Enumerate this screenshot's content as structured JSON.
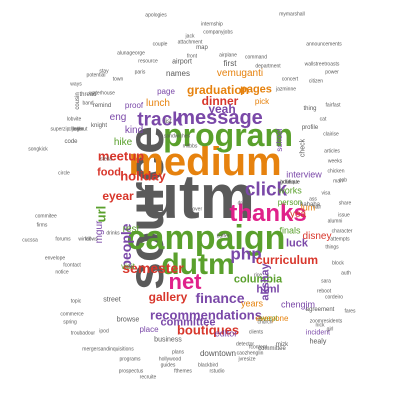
{
  "palette": {
    "grey": "#5a5a5a",
    "orange": "#e6820e",
    "purple": "#7a48a8",
    "green": "#5aa02c",
    "pink": "#e0218a",
    "blue": "#3b6fc0",
    "red": "#d8362b",
    "brown": "#a0522d",
    "teal": "#2a9d8f",
    "olive": "#8c8c2a"
  },
  "words": [
    {
      "text": "utm",
      "color": "grey",
      "weight": 62,
      "rotated": false
    },
    {
      "text": "source",
      "color": "grey",
      "weight": 50,
      "rotated": true
    },
    {
      "text": "medium",
      "color": "orange",
      "weight": 40,
      "rotated": false
    },
    {
      "text": "campaign",
      "color": "green",
      "weight": 34,
      "rotated": false
    },
    {
      "text": "program",
      "color": "green",
      "weight": 32,
      "rotated": false
    },
    {
      "text": "dutm",
      "color": "green",
      "weight": 30,
      "rotated": false
    },
    {
      "text": "thanks",
      "color": "pink",
      "weight": 24,
      "rotated": false
    },
    {
      "text": "net",
      "color": "pink",
      "weight": 22,
      "rotated": false
    },
    {
      "text": "message",
      "color": "purple",
      "weight": 20,
      "rotated": false
    },
    {
      "text": "track",
      "color": "purple",
      "weight": 19,
      "rotated": false
    },
    {
      "text": "click",
      "color": "purple",
      "weight": 19,
      "rotated": false
    },
    {
      "text": "php",
      "color": "purple",
      "weight": 17,
      "rotated": false
    },
    {
      "text": "finance",
      "color": "purple",
      "weight": 14,
      "rotated": false
    },
    {
      "text": "recommendations",
      "color": "purple",
      "weight": 13,
      "rotated": false
    },
    {
      "text": "people",
      "color": "purple",
      "weight": 14,
      "rotated": true
    },
    {
      "text": "semester",
      "color": "red",
      "weight": 14,
      "rotated": false
    },
    {
      "text": "boutiques",
      "color": "red",
      "weight": 13,
      "rotated": false
    },
    {
      "text": "holiday",
      "color": "red",
      "weight": 13,
      "rotated": false
    },
    {
      "text": "meetup",
      "color": "red",
      "weight": 13,
      "rotated": false
    },
    {
      "text": "eyear",
      "color": "red",
      "weight": 12,
      "rotated": false
    },
    {
      "text": "dinner",
      "color": "red",
      "weight": 12,
      "rotated": false
    },
    {
      "text": "curriculum",
      "color": "red",
      "weight": 12,
      "rotated": false
    },
    {
      "text": "gallery",
      "color": "red",
      "weight": 12,
      "rotated": false
    },
    {
      "text": "graduation",
      "color": "orange",
      "weight": 12,
      "rotated": false
    },
    {
      "text": "yeah",
      "color": "purple",
      "weight": 12,
      "rotated": false
    },
    {
      "text": "columbia",
      "color": "green",
      "weight": 11,
      "rotated": false
    },
    {
      "text": "committee",
      "color": "purple",
      "weight": 11,
      "rotated": false
    },
    {
      "text": "akshay",
      "color": "purple",
      "weight": 11,
      "rotated": true
    },
    {
      "text": "food",
      "color": "red",
      "weight": 11,
      "rotated": false
    },
    {
      "text": "url",
      "color": "green",
      "weight": 13,
      "rotated": true
    },
    {
      "text": "luck",
      "color": "purple",
      "weight": 11,
      "rotated": false
    },
    {
      "text": "disney",
      "color": "red",
      "weight": 10,
      "rotated": false
    },
    {
      "text": "html",
      "color": "purple",
      "weight": 11,
      "rotated": false
    },
    {
      "text": "lunch",
      "color": "orange",
      "weight": 10,
      "rotated": false
    },
    {
      "text": "vemuganti",
      "color": "orange",
      "weight": 10,
      "rotated": false
    },
    {
      "text": "pages",
      "color": "orange",
      "weight": 11,
      "rotated": false
    },
    {
      "text": "rest",
      "color": "green",
      "weight": 10,
      "rotated": false
    },
    {
      "text": "yea",
      "color": "red",
      "weight": 10,
      "rotated": false
    },
    {
      "text": "kind",
      "color": "purple",
      "weight": 10,
      "rotated": false
    },
    {
      "text": "mgur",
      "color": "purple",
      "weight": 10,
      "rotated": true
    },
    {
      "text": "hike",
      "color": "green",
      "weight": 10,
      "rotated": false
    },
    {
      "text": "eng",
      "color": "purple",
      "weight": 10,
      "rotated": false
    },
    {
      "text": "editor",
      "color": "purple",
      "weight": 9,
      "rotated": false
    },
    {
      "text": "years",
      "color": "orange",
      "weight": 9,
      "rotated": false
    },
    {
      "text": "interview",
      "color": "purple",
      "weight": 9,
      "rotated": false
    },
    {
      "text": "finals",
      "color": "green",
      "weight": 9,
      "rotated": false
    },
    {
      "text": "chengjm",
      "color": "purple",
      "weight": 9,
      "rotated": false
    },
    {
      "text": "works",
      "color": "green",
      "weight": 9,
      "rotated": false
    },
    {
      "text": "person",
      "color": "green",
      "weight": 8,
      "rotated": false
    },
    {
      "text": "event",
      "color": "green",
      "weight": 8,
      "rotated": false
    },
    {
      "text": "everyone",
      "color": "orange",
      "weight": 8,
      "rotated": false
    },
    {
      "text": "place",
      "color": "purple",
      "weight": 8,
      "rotated": false
    },
    {
      "text": "lum",
      "color": "orange",
      "weight": 9,
      "rotated": false
    },
    {
      "text": "downtown",
      "color": "grey",
      "weight": 8,
      "rotated": false
    },
    {
      "text": "incident",
      "color": "purple",
      "weight": 7,
      "rotated": false
    },
    {
      "text": "healy",
      "color": "grey",
      "weight": 7,
      "rotated": false
    },
    {
      "text": "pick",
      "color": "orange",
      "weight": 8,
      "rotated": false
    },
    {
      "text": "first",
      "color": "grey",
      "weight": 8,
      "rotated": false
    },
    {
      "text": "names",
      "color": "grey",
      "weight": 8,
      "rotated": false
    },
    {
      "text": "page",
      "color": "purple",
      "weight": 8,
      "rotated": false
    },
    {
      "text": "airport",
      "color": "grey",
      "weight": 7,
      "rotated": false
    },
    {
      "text": "proof",
      "color": "purple",
      "weight": 8,
      "rotated": false
    },
    {
      "text": "visit",
      "color": "green",
      "weight": 8,
      "rotated": false
    },
    {
      "text": "browse",
      "color": "grey",
      "weight": 7,
      "rotated": false
    },
    {
      "text": "street",
      "color": "grey",
      "weight": 7,
      "rotated": false
    },
    {
      "text": "business",
      "color": "grey",
      "weight": 7,
      "rotated": false
    },
    {
      "text": "agreement",
      "color": "grey",
      "weight": 6,
      "rotated": false
    },
    {
      "text": "school",
      "color": "purple",
      "weight": 8,
      "rotated": true
    },
    {
      "text": "check",
      "color": "grey",
      "weight": 7,
      "rotated": true
    },
    {
      "text": "committee",
      "color": "grey",
      "weight": 6,
      "rotated": false
    },
    {
      "text": "profile",
      "color": "grey",
      "weight": 6,
      "rotated": false
    },
    {
      "text": "thing",
      "color": "grey",
      "weight": 6,
      "rotated": false
    },
    {
      "text": "list",
      "color": "grey",
      "weight": 6,
      "rotated": false
    },
    {
      "text": "hahaha",
      "color": "grey",
      "weight": 6,
      "rotated": false
    },
    {
      "text": "mizk",
      "color": "grey",
      "weight": 6,
      "rotated": false
    },
    {
      "text": "code",
      "color": "grey",
      "weight": 6,
      "rotated": false
    },
    {
      "text": "stella",
      "color": "grey",
      "weight": 5,
      "rotated": false
    },
    {
      "text": "knight",
      "color": "grey",
      "weight": 6,
      "rotated": false
    },
    {
      "text": "cousin",
      "color": "grey",
      "weight": 6,
      "rotated": true
    },
    {
      "text": "waterhouse",
      "color": "grey",
      "weight": 5,
      "rotated": false
    },
    {
      "text": "remind",
      "color": "grey",
      "weight": 6,
      "rotated": false
    },
    {
      "text": "thread",
      "color": "grey",
      "weight": 6,
      "rotated": false
    },
    {
      "text": "band",
      "color": "grey",
      "weight": 5,
      "rotated": false
    },
    {
      "text": "stay",
      "color": "grey",
      "weight": 5,
      "rotated": false
    },
    {
      "text": "paris",
      "color": "grey",
      "weight": 5,
      "rotated": false
    },
    {
      "text": "airplane",
      "color": "grey",
      "weight": 5,
      "rotated": false
    },
    {
      "text": "map",
      "color": "grey",
      "weight": 6,
      "rotated": false
    },
    {
      "text": "command",
      "color": "grey",
      "weight": 5,
      "rotated": false
    },
    {
      "text": "wallstreetroasts",
      "color": "grey",
      "weight": 5,
      "rotated": false
    },
    {
      "text": "department",
      "color": "grey",
      "weight": 5,
      "rotated": false
    },
    {
      "text": "resource",
      "color": "grey",
      "weight": 5,
      "rotated": false
    },
    {
      "text": "front",
      "color": "grey",
      "weight": 5,
      "rotated": false
    },
    {
      "text": "couple",
      "color": "grey",
      "weight": 5,
      "rotated": false
    },
    {
      "text": "jack",
      "color": "grey",
      "weight": 5,
      "rotated": false
    },
    {
      "text": "internship",
      "color": "grey",
      "weight": 5,
      "rotated": false
    },
    {
      "text": "companyjobs",
      "color": "grey",
      "weight": 5,
      "rotated": false
    },
    {
      "text": "attachment",
      "color": "grey",
      "weight": 5,
      "rotated": false
    },
    {
      "text": "apologies",
      "color": "grey",
      "weight": 5,
      "rotated": false
    },
    {
      "text": "mymarshall",
      "color": "grey",
      "weight": 5,
      "rotated": false
    },
    {
      "text": "alunageorge",
      "color": "grey",
      "weight": 5,
      "rotated": false
    },
    {
      "text": "potential",
      "color": "grey",
      "weight": 5,
      "rotated": false
    },
    {
      "text": "jazminne",
      "color": "grey",
      "weight": 5,
      "rotated": false
    },
    {
      "text": "citizen",
      "color": "grey",
      "weight": 5,
      "rotated": false
    },
    {
      "text": "concert",
      "color": "grey",
      "weight": 5,
      "rotated": false
    },
    {
      "text": "power",
      "color": "grey",
      "weight": 5,
      "rotated": false
    },
    {
      "text": "announcements",
      "color": "grey",
      "weight": 5,
      "rotated": false
    },
    {
      "text": "fairfast",
      "color": "grey",
      "weight": 5,
      "rotated": false
    },
    {
      "text": "clairise",
      "color": "grey",
      "weight": 5,
      "rotated": false
    },
    {
      "text": "articles",
      "color": "grey",
      "weight": 5,
      "rotated": false
    },
    {
      "text": "weeks",
      "color": "grey",
      "weight": 5,
      "rotated": false
    },
    {
      "text": "chicken",
      "color": "grey",
      "weight": 5,
      "rotated": false
    },
    {
      "text": "mah",
      "color": "grey",
      "weight": 5,
      "rotated": false
    },
    {
      "text": "visa",
      "color": "grey",
      "weight": 5,
      "rotated": false
    },
    {
      "text": "share",
      "color": "grey",
      "weight": 5,
      "rotated": false
    },
    {
      "text": "issue",
      "color": "grey",
      "weight": 5,
      "rotated": false
    },
    {
      "text": "alumni",
      "color": "grey",
      "weight": 5,
      "rotated": false
    },
    {
      "text": "character",
      "color": "grey",
      "weight": 5,
      "rotated": false
    },
    {
      "text": "attempts",
      "color": "grey",
      "weight": 5,
      "rotated": false
    },
    {
      "text": "things",
      "color": "grey",
      "weight": 5,
      "rotated": false
    },
    {
      "text": "block",
      "color": "grey",
      "weight": 5,
      "rotated": false
    },
    {
      "text": "auth",
      "color": "grey",
      "weight": 5,
      "rotated": false
    },
    {
      "text": "sara",
      "color": "grey",
      "weight": 5,
      "rotated": false
    },
    {
      "text": "reboot",
      "color": "grey",
      "weight": 5,
      "rotated": false
    },
    {
      "text": "cordeiro",
      "color": "grey",
      "weight": 5,
      "rotated": false
    },
    {
      "text": "zoomresidents",
      "color": "grey",
      "weight": 5,
      "rotated": false
    },
    {
      "text": "nick",
      "color": "grey",
      "weight": 5,
      "rotated": false
    },
    {
      "text": "girl",
      "color": "grey",
      "weight": 5,
      "rotated": false
    },
    {
      "text": "fares",
      "color": "grey",
      "weight": 5,
      "rotated": false
    },
    {
      "text": "caozhenglin",
      "color": "grey",
      "weight": 5,
      "rotated": false
    },
    {
      "text": "fcontent",
      "color": "grey",
      "weight": 5,
      "rotated": false
    },
    {
      "text": "jvresize",
      "color": "grey",
      "weight": 5,
      "rotated": false
    },
    {
      "text": "rstudio",
      "color": "grey",
      "weight": 5,
      "rotated": false
    },
    {
      "text": "fthemes",
      "color": "grey",
      "weight": 5,
      "rotated": false
    },
    {
      "text": "recruite",
      "color": "grey",
      "weight": 5,
      "rotated": false
    },
    {
      "text": "blackbird",
      "color": "grey",
      "weight": 5,
      "rotated": false
    },
    {
      "text": "guides",
      "color": "grey",
      "weight": 5,
      "rotated": false
    },
    {
      "text": "hollywood",
      "color": "grey",
      "weight": 5,
      "rotated": false
    },
    {
      "text": "prospectus",
      "color": "grey",
      "weight": 5,
      "rotated": false
    },
    {
      "text": "programs",
      "color": "grey",
      "weight": 5,
      "rotated": false
    },
    {
      "text": "mergersandinquisitions",
      "color": "grey",
      "weight": 5,
      "rotated": false
    },
    {
      "text": "ipod",
      "color": "grey",
      "weight": 5,
      "rotated": false
    },
    {
      "text": "troubadour",
      "color": "grey",
      "weight": 5,
      "rotated": false
    },
    {
      "text": "spring",
      "color": "grey",
      "weight": 5,
      "rotated": false
    },
    {
      "text": "commerce",
      "color": "grey",
      "weight": 5,
      "rotated": false
    },
    {
      "text": "topic",
      "color": "grey",
      "weight": 5,
      "rotated": false
    },
    {
      "text": "fcontact",
      "color": "grey",
      "weight": 5,
      "rotated": false
    },
    {
      "text": "envelope",
      "color": "grey",
      "weight": 5,
      "rotated": false
    },
    {
      "text": "forums",
      "color": "grey",
      "weight": 5,
      "rotated": false
    },
    {
      "text": "cucssa",
      "color": "grey",
      "weight": 5,
      "rotated": false
    },
    {
      "text": "firms",
      "color": "grey",
      "weight": 5,
      "rotated": false
    },
    {
      "text": "commitee",
      "color": "grey",
      "weight": 5,
      "rotated": false
    },
    {
      "text": "circle",
      "color": "grey",
      "weight": 5,
      "rotated": false
    },
    {
      "text": "songkick",
      "color": "grey",
      "weight": 5,
      "rotated": false
    },
    {
      "text": "superzip",
      "color": "grey",
      "weight": 5,
      "rotated": false
    },
    {
      "text": "ways",
      "color": "grey",
      "weight": 5,
      "rotated": false
    },
    {
      "text": "town",
      "color": "grey",
      "weight": 5,
      "rotated": false
    },
    {
      "text": "detector",
      "color": "grey",
      "weight": 5,
      "rotated": false
    },
    {
      "text": "plans",
      "color": "grey",
      "weight": 5,
      "rotated": false
    },
    {
      "text": "clients",
      "color": "grey",
      "weight": 5,
      "rotated": false
    },
    {
      "text": "church",
      "color": "grey",
      "weight": 5,
      "rotated": false
    },
    {
      "text": "rice",
      "color": "grey",
      "weight": 5,
      "rotated": false
    },
    {
      "text": "buffer",
      "color": "grey",
      "weight": 5,
      "rotated": false
    },
    {
      "text": "drink",
      "color": "grey",
      "weight": 5,
      "rotated": false
    },
    {
      "text": "sandwiches",
      "color": "grey",
      "weight": 5,
      "rotated": false
    },
    {
      "text": "mitbbs",
      "color": "grey",
      "weight": 5,
      "rotated": false
    },
    {
      "text": "cat",
      "color": "grey",
      "weight": 5,
      "rotated": false
    },
    {
      "text": "hair",
      "color": "grey",
      "weight": 5,
      "rotated": false
    },
    {
      "text": "ass",
      "color": "grey",
      "weight": 5,
      "rotated": false
    },
    {
      "text": "cab",
      "color": "grey",
      "weight": 5,
      "rotated": false
    },
    {
      "text": "notice",
      "color": "grey",
      "weight": 5,
      "rotated": false
    },
    {
      "text": "cover",
      "color": "grey",
      "weight": 5,
      "rotated": false
    },
    {
      "text": "drinks",
      "color": "grey",
      "weight": 5,
      "rotated": false
    },
    {
      "text": "lobvite",
      "color": "grey",
      "weight": 5,
      "rotated": false
    },
    {
      "text": "graduate",
      "color": "grey",
      "weight": 5,
      "rotated": false
    },
    {
      "text": "chestnut",
      "color": "grey",
      "weight": 5,
      "rotated": false
    },
    {
      "text": "windows",
      "color": "grey",
      "weight": 5,
      "rotated": false
    },
    {
      "text": "boutique",
      "color": "grey",
      "weight": 5,
      "rotated": false
    },
    {
      "text": "login",
      "color": "grey",
      "weight": 5,
      "rotated": false
    },
    {
      "text": "fall",
      "color": "grey",
      "weight": 5,
      "rotated": false
    },
    {
      "text": "fliers",
      "color": "grey",
      "weight": 5,
      "rotated": false
    },
    {
      "text": "jaden",
      "color": "grey",
      "weight": 5,
      "rotated": false
    }
  ]
}
